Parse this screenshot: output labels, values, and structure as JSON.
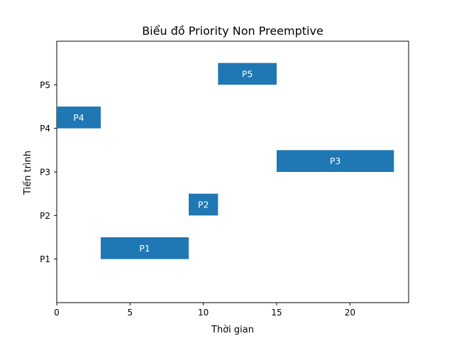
{
  "chart_data": {
    "type": "bar",
    "orientation": "horizontal-gantt",
    "title": "Biểu đồ Priority Non Preemptive",
    "xlabel": "Thời gian",
    "ylabel": "Tiến trình",
    "xlim": [
      0,
      24
    ],
    "x_ticks": [
      0,
      5,
      10,
      15,
      20
    ],
    "categories": [
      "P1",
      "P2",
      "P3",
      "P4",
      "P5"
    ],
    "tasks": [
      {
        "name": "P1",
        "start": 3,
        "end": 9
      },
      {
        "name": "P2",
        "start": 9,
        "end": 11
      },
      {
        "name": "P3",
        "start": 15,
        "end": 23
      },
      {
        "name": "P4",
        "start": 0,
        "end": 3
      },
      {
        "name": "P5",
        "start": 11,
        "end": 15
      }
    ],
    "bar_color": "#1f77b4",
    "grid": false
  }
}
